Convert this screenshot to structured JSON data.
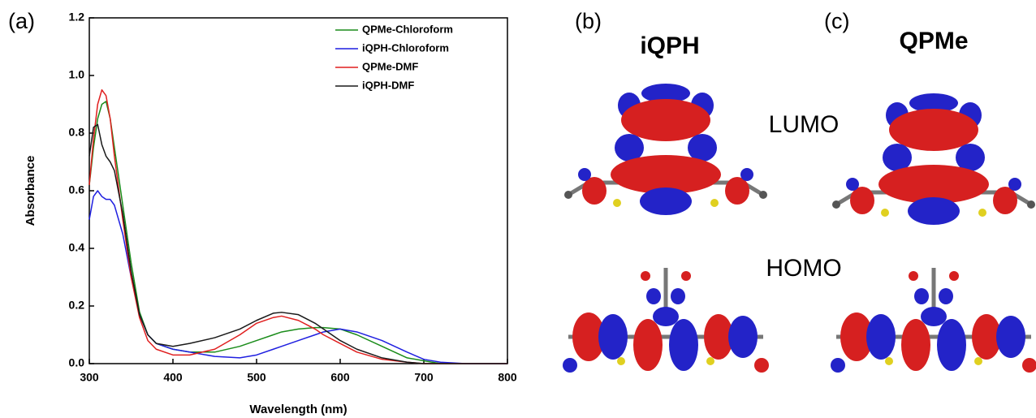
{
  "chart_data": {
    "type": "line",
    "panel_label": "(a)",
    "x_label": "Wavelength (nm)",
    "y_label": "Absorbance",
    "x": [
      300,
      305,
      310,
      315,
      320,
      325,
      330,
      340,
      350,
      360,
      370,
      380,
      400,
      420,
      450,
      480,
      500,
      520,
      530,
      550,
      570,
      580,
      600,
      620,
      650,
      680,
      700,
      720,
      750,
      800
    ],
    "series": [
      {
        "name": "QPMe-Chloroform",
        "color": "#1a8c1a",
        "values": [
          0.62,
          0.75,
          0.85,
          0.9,
          0.91,
          0.85,
          0.75,
          0.55,
          0.35,
          0.18,
          0.1,
          0.07,
          0.05,
          0.04,
          0.04,
          0.06,
          0.08,
          0.1,
          0.11,
          0.12,
          0.125,
          0.125,
          0.12,
          0.1,
          0.06,
          0.02,
          0.01,
          0,
          0,
          0
        ]
      },
      {
        "name": "iQPH-Chloroform",
        "color": "#1f1fe0",
        "values": [
          0.5,
          0.58,
          0.6,
          0.58,
          0.57,
          0.57,
          0.55,
          0.45,
          0.3,
          0.17,
          0.1,
          0.07,
          0.05,
          0.04,
          0.025,
          0.02,
          0.03,
          0.05,
          0.06,
          0.08,
          0.1,
          0.11,
          0.12,
          0.11,
          0.08,
          0.04,
          0.015,
          0.005,
          0,
          0
        ]
      },
      {
        "name": "QPMe-DMF",
        "color": "#e01f1f",
        "values": [
          0.62,
          0.78,
          0.9,
          0.95,
          0.93,
          0.85,
          0.72,
          0.5,
          0.3,
          0.16,
          0.08,
          0.05,
          0.03,
          0.03,
          0.05,
          0.1,
          0.14,
          0.16,
          0.165,
          0.15,
          0.12,
          0.1,
          0.07,
          0.04,
          0.015,
          0.005,
          0,
          0,
          0,
          0
        ]
      },
      {
        "name": "iQPH-DMF",
        "color": "#1a1a1a",
        "values": [
          0.72,
          0.82,
          0.83,
          0.76,
          0.72,
          0.7,
          0.67,
          0.52,
          0.32,
          0.17,
          0.1,
          0.07,
          0.06,
          0.07,
          0.09,
          0.12,
          0.15,
          0.175,
          0.178,
          0.17,
          0.14,
          0.12,
          0.08,
          0.05,
          0.02,
          0.005,
          0,
          0,
          0,
          0
        ]
      }
    ],
    "xlim": [
      300,
      800
    ],
    "xticks": [
      300,
      400,
      500,
      600,
      700,
      800
    ],
    "ylim": [
      0,
      1.2
    ],
    "yticks": [
      {
        "value": 0,
        "label": "0.0"
      },
      0.2,
      0.4,
      0.6,
      0.8,
      {
        "value": 1,
        "label": "1.0"
      },
      1.2
    ],
    "legend": "upper-right"
  },
  "orbitals": {
    "panel_b": "(b)",
    "panel_c": "(c)",
    "molecule_b": "iQPH",
    "molecule_c": "QPMe",
    "lumo": "LUMO",
    "homo": "HOMO"
  }
}
